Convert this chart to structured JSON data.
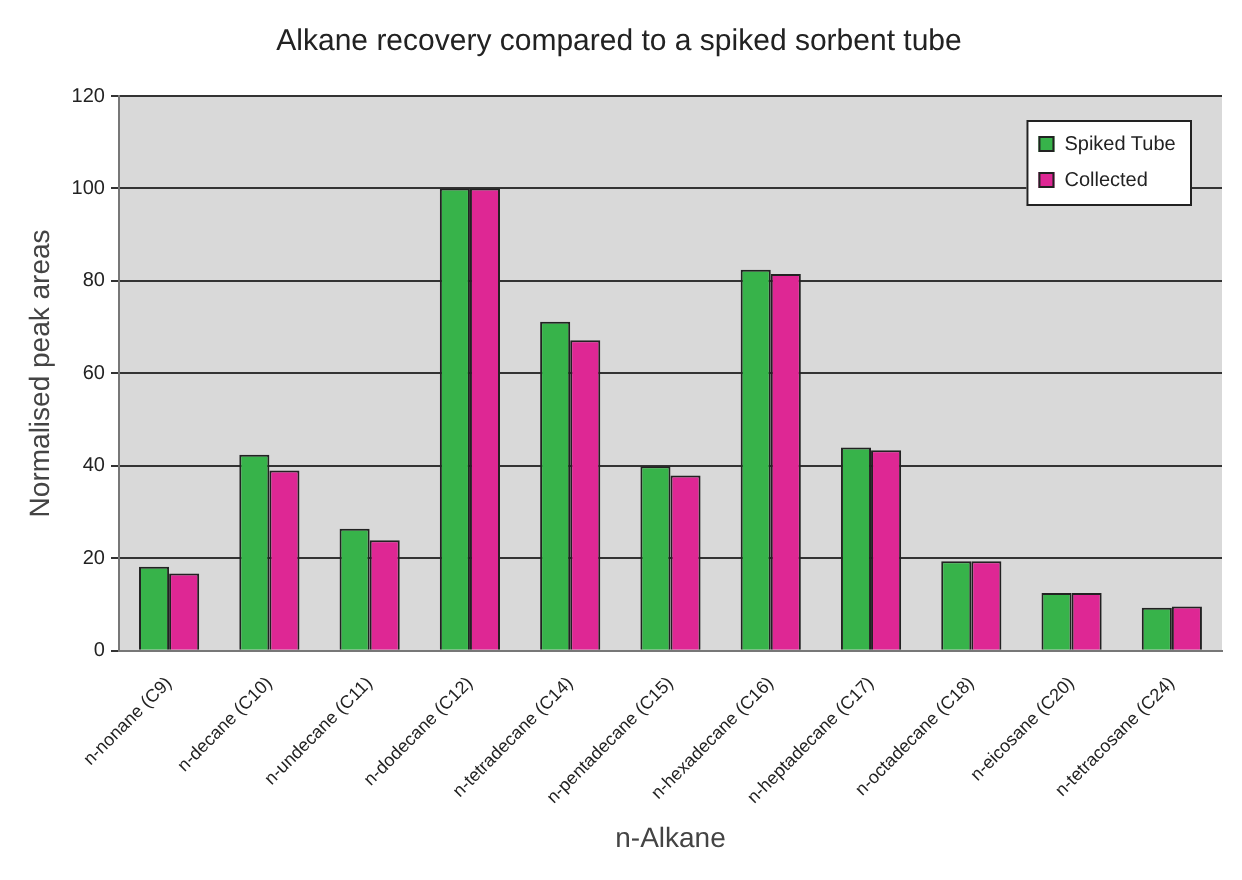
{
  "chart_data": {
    "type": "bar",
    "title": "Alkane recovery compared to a spiked sorbent tube",
    "xlabel": "n-Alkane",
    "ylabel": "Normalised peak areas",
    "categories": [
      "n-nonane (C9)",
      "n-decane (C10)",
      "n-undecane (C11)",
      "n-dodecane (C12)",
      "n-tetradecane (C14)",
      "n-pentadecane (C15)",
      "n-hexadecane (C16)",
      "n-heptadecane (C17)",
      "n-octadecane (C18)",
      "n-eicosane (C20)",
      "n-tetracosane (C24)"
    ],
    "series": [
      {
        "name": "Spiked Tube",
        "color": "#37b34a",
        "values": [
          18.2,
          42.4,
          26.4,
          100,
          71.2,
          39.9,
          82.4,
          44,
          19.4,
          12.5,
          9.3
        ]
      },
      {
        "name": "Collected",
        "color": "#de2794",
        "values": [
          16.7,
          39,
          23.9,
          100,
          67.2,
          37.9,
          81.5,
          43.4,
          19.4,
          12.5,
          9.6
        ]
      }
    ],
    "ylim": [
      0,
      120
    ],
    "yticks": [
      0,
      20,
      40,
      60,
      80,
      100,
      120
    ],
    "grid": "y",
    "legend": "top right"
  }
}
